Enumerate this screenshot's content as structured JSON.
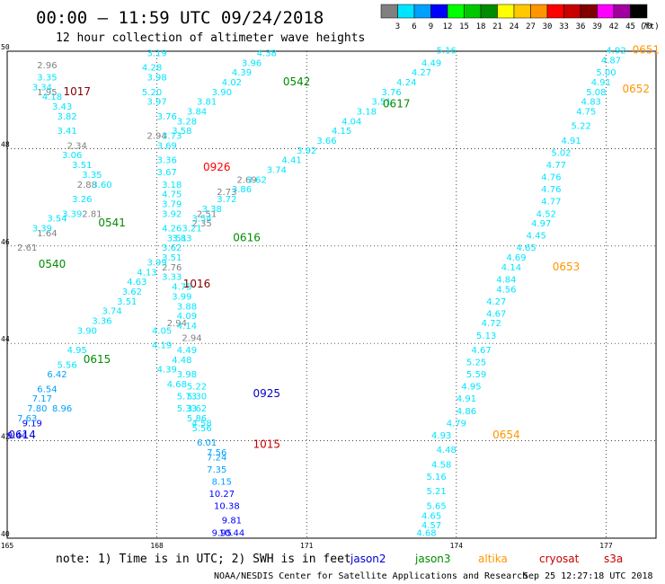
{
  "header": {
    "title": "00:00 – 11:59 UTC 09/24/2018",
    "subtitle": "12 hour collection of altimeter wave heights"
  },
  "colorbar": {
    "unit": "(ft)",
    "colors": [
      "#808080",
      "#00e5ff",
      "#00a0ff",
      "#0000ff",
      "#00ff00",
      "#00c800",
      "#008c00",
      "#ffff00",
      "#ffc800",
      "#ff9600",
      "#ff0000",
      "#c80000",
      "#800000",
      "#ff00ff",
      "#a000a0",
      "#000000"
    ],
    "labels": [
      "3",
      "6",
      "9",
      "12",
      "15",
      "18",
      "21",
      "24",
      "27",
      "30",
      "33",
      "36",
      "39",
      "42",
      "45",
      "70"
    ]
  },
  "footer": {
    "note": "note:  1) Time is in UTC;  2) SWH is in feet",
    "credit": "NOAA/NESDIS Center for Satellite Applications and Research",
    "timestamp": "Sep 25 12:27:18 UTC 2018",
    "satellites": [
      {
        "name": "jason2",
        "color": "#0000cc"
      },
      {
        "name": "jason3",
        "color": "#008c00"
      },
      {
        "name": "altika",
        "color": "#ff9600"
      },
      {
        "name": "cryosat",
        "color": "#c80000"
      },
      {
        "name": "s3a",
        "color": "#c80000"
      }
    ]
  },
  "chart_data": {
    "type": "scatter",
    "title": "00:00 – 11:59 UTC 09/24/2018",
    "subtitle": "12 hour collection of altimeter wave heights",
    "xlabel": "",
    "ylabel": "",
    "xlim": [
      165,
      178
    ],
    "ylim": [
      40,
      50
    ],
    "x_ticks": [
      "165",
      "168",
      "171",
      "174",
      "177"
    ],
    "y_ticks": [
      "40",
      "42",
      "44",
      "46",
      "48",
      "50"
    ],
    "grid": true,
    "value_unit": "ft",
    "tracks": [
      {
        "satellite": "cryosat",
        "time": "1017",
        "color": "#800000",
        "label_pos": [
          166.4,
          49.1
        ],
        "points": [
          [
            165.8,
            49.65,
            2.96
          ],
          [
            165.8,
            49.1,
            1.95
          ],
          [
            166.4,
            48.0,
            2.34
          ],
          [
            166.6,
            47.2,
            2.88
          ],
          [
            166.7,
            46.6,
            2.81
          ],
          [
            165.8,
            46.2,
            1.64
          ],
          [
            165.4,
            45.9,
            2.61
          ]
        ]
      },
      {
        "satellite": "s3a",
        "time": "0926",
        "color": "#ff0000",
        "label_pos": [
          169.2,
          47.55
        ],
        "points": [
          [
            168.0,
            48.2,
            2.94
          ],
          [
            169.8,
            47.3,
            2.69
          ],
          [
            169.4,
            47.05,
            2.73
          ],
          [
            169.0,
            46.6,
            2.51
          ],
          [
            168.9,
            46.4,
            2.35
          ]
        ]
      },
      {
        "satellite": "cryosat",
        "time": "1016",
        "color": "#800000",
        "label_pos": [
          168.8,
          45.15
        ],
        "points": [
          [
            168.4,
            44.35,
            2.94
          ],
          [
            168.7,
            44.05,
            2.94
          ]
        ]
      },
      {
        "satellite": "jason2",
        "time": "0614",
        "color": "#0000cc",
        "label_pos": [
          165.3,
          42.05
        ],
        "points": [
          [
            165.5,
            42.3,
            9.19
          ],
          [
            165.2,
            42.05,
            9.44
          ],
          [
            166.1,
            42.6,
            8.96
          ]
        ]
      },
      {
        "satellite": "jason3",
        "time": "0540",
        "color": "#008c00",
        "label_pos": [
          165.9,
          45.55
        ],
        "points": [
          [
            165.8,
            49.4,
            3.35
          ],
          [
            165.7,
            49.2,
            3.34
          ],
          [
            165.9,
            49.0,
            4.18
          ],
          [
            166.1,
            48.8,
            3.43
          ],
          [
            166.2,
            48.6,
            3.82
          ],
          [
            166.2,
            48.3,
            3.41
          ],
          [
            166.3,
            47.8,
            3.06
          ],
          [
            166.5,
            47.6,
            3.51
          ],
          [
            166.7,
            47.4,
            3.35
          ],
          [
            166.9,
            47.2,
            3.6
          ],
          [
            166.5,
            46.9,
            3.26
          ],
          [
            166.3,
            46.6,
            3.39
          ],
          [
            166.0,
            46.5,
            3.54
          ],
          [
            165.7,
            46.3,
            3.39
          ]
        ]
      },
      {
        "satellite": "jason3",
        "time": "0541",
        "color": "#008c00",
        "label_pos": [
          167.1,
          46.4
        ],
        "points": [
          [
            168.0,
            49.9,
            3.19
          ],
          [
            167.9,
            49.6,
            4.28
          ],
          [
            168.0,
            49.4,
            3.98
          ],
          [
            167.9,
            49.1,
            5.2
          ],
          [
            168.0,
            48.9,
            3.97
          ],
          [
            168.2,
            48.6,
            3.76
          ],
          [
            168.3,
            48.2,
            3.73
          ],
          [
            168.2,
            48.0,
            3.69
          ],
          [
            168.2,
            47.7,
            3.36
          ],
          [
            168.2,
            47.45,
            3.67
          ],
          [
            168.3,
            47.2,
            3.18
          ],
          [
            168.3,
            47.0,
            4.75
          ],
          [
            168.3,
            46.8,
            3.79
          ],
          [
            168.3,
            46.6,
            3.92
          ],
          [
            168.3,
            46.3,
            4.26
          ],
          [
            168.4,
            46.1,
            3.51
          ]
        ]
      },
      {
        "satellite": "jason3",
        "time": "0542",
        "color": "#008c00",
        "label_pos": [
          170.8,
          49.3
        ],
        "points": [
          [
            170.2,
            49.9,
            4.38
          ],
          [
            169.9,
            49.7,
            3.96
          ],
          [
            169.7,
            49.5,
            4.39
          ],
          [
            169.5,
            49.3,
            4.02
          ],
          [
            169.3,
            49.1,
            3.9
          ],
          [
            169.0,
            48.9,
            3.81
          ],
          [
            168.8,
            48.7,
            3.84
          ],
          [
            168.6,
            48.5,
            3.28
          ],
          [
            168.5,
            48.3,
            3.58
          ]
        ]
      },
      {
        "satellite": "jason3",
        "time": "0617",
        "color": "#008c00",
        "label_pos": [
          172.8,
          48.85
        ],
        "points": [
          [
            173.8,
            49.95,
            5.16
          ],
          [
            173.5,
            49.7,
            4.49
          ],
          [
            173.3,
            49.5,
            4.27
          ],
          [
            173.0,
            49.3,
            4.24
          ],
          [
            172.7,
            49.1,
            3.76
          ],
          [
            172.5,
            48.9,
            3.51
          ],
          [
            172.2,
            48.7,
            3.18
          ],
          [
            171.9,
            48.5,
            4.04
          ],
          [
            171.7,
            48.3,
            4.15
          ],
          [
            171.4,
            48.1,
            3.66
          ],
          [
            171.0,
            47.9,
            3.92
          ],
          [
            170.7,
            47.7,
            4.41
          ],
          [
            170.4,
            47.5,
            3.74
          ],
          [
            170.0,
            47.3,
            3.62
          ],
          [
            169.7,
            47.1,
            3.86
          ],
          [
            169.4,
            46.9,
            3.72
          ],
          [
            169.1,
            46.7,
            3.38
          ],
          [
            168.9,
            46.5,
            3.54
          ],
          [
            168.7,
            46.3,
            3.21
          ],
          [
            168.5,
            46.1,
            3.83
          ]
        ]
      },
      {
        "satellite": "jason3",
        "time": "0616",
        "color": "#008c00",
        "label_pos": [
          169.8,
          46.1
        ],
        "points": [
          [
            168.3,
            45.9,
            3.62
          ],
          [
            168.3,
            45.7,
            3.51
          ],
          [
            168.3,
            45.5,
            2.76
          ],
          [
            168.3,
            45.3,
            3.33
          ],
          [
            168.5,
            45.1,
            4.75
          ],
          [
            168.5,
            44.9,
            3.99
          ],
          [
            168.6,
            44.7,
            3.88
          ],
          [
            168.6,
            44.5,
            4.09
          ],
          [
            168.6,
            44.3,
            4.14
          ],
          [
            168.6,
            43.8,
            4.49
          ],
          [
            168.5,
            43.6,
            4.48
          ],
          [
            168.6,
            43.3,
            3.98
          ],
          [
            168.8,
            43.05,
            5.22
          ],
          [
            168.8,
            42.85,
            5.3
          ],
          [
            168.8,
            42.6,
            3.62
          ],
          [
            168.9,
            42.3,
            4.58
          ],
          [
            169.2,
            41.6,
            7.24
          ]
        ]
      },
      {
        "satellite": "jason3",
        "time": "0615",
        "color": "#008c00",
        "label_pos": [
          166.8,
          43.6
        ],
        "points": [
          [
            168.0,
            45.6,
            3.99
          ],
          [
            167.8,
            45.4,
            4.13
          ],
          [
            167.6,
            45.2,
            4.63
          ],
          [
            167.5,
            45.0,
            3.62
          ],
          [
            167.4,
            44.8,
            3.51
          ],
          [
            167.1,
            44.6,
            3.74
          ],
          [
            166.9,
            44.4,
            3.36
          ],
          [
            166.6,
            44.2,
            3.9
          ],
          [
            166.4,
            43.8,
            4.95
          ],
          [
            166.2,
            43.5,
            5.56
          ],
          [
            166.0,
            43.3,
            6.42
          ],
          [
            165.8,
            43.0,
            6.54
          ],
          [
            165.7,
            42.8,
            7.17
          ],
          [
            165.6,
            42.6,
            7.8
          ],
          [
            165.4,
            42.4,
            7.63
          ]
        ]
      },
      {
        "satellite": "jason2",
        "time": "0925",
        "color": "#0000cc",
        "label_pos": [
          170.2,
          42.9
        ],
        "points": [
          [
            168.1,
            44.2,
            4.05
          ],
          [
            168.1,
            43.9,
            4.19
          ],
          [
            168.2,
            43.4,
            4.39
          ],
          [
            168.4,
            43.1,
            4.68
          ],
          [
            168.6,
            42.85,
            5.73
          ],
          [
            168.6,
            42.6,
            5.33
          ],
          [
            168.8,
            42.4,
            5.86
          ],
          [
            168.9,
            42.2,
            5.56
          ],
          [
            169.0,
            41.9,
            6.01
          ],
          [
            169.2,
            41.7,
            7.56
          ],
          [
            169.2,
            41.35,
            7.35
          ],
          [
            169.3,
            41.1,
            8.15
          ],
          [
            169.3,
            40.85,
            10.27
          ],
          [
            169.4,
            40.6,
            10.38
          ],
          [
            169.5,
            40.3,
            9.81
          ]
        ]
      },
      {
        "satellite": "s3a",
        "time": "1015",
        "color": "#c80000",
        "label_pos": [
          170.2,
          41.85
        ],
        "points": [
          [
            169.3,
            40.05,
            9.95
          ],
          [
            169.5,
            40.05,
            10.44
          ]
        ]
      },
      {
        "satellite": "altika",
        "time": "0651",
        "color": "#ff9600",
        "label_pos": [
          177.8,
          49.95
        ],
        "points": [
          [
            177.2,
            49.95,
            4.92
          ],
          [
            177.1,
            49.75,
            4.87
          ],
          [
            177.0,
            49.5,
            5.0
          ],
          [
            176.9,
            49.3,
            4.91
          ],
          [
            176.8,
            49.1,
            5.08
          ],
          [
            176.7,
            48.9,
            4.83
          ],
          [
            176.6,
            48.7,
            4.75
          ],
          [
            176.5,
            48.4,
            5.22
          ],
          [
            176.3,
            48.1,
            4.91
          ],
          [
            176.1,
            47.85,
            5.02
          ],
          [
            176.0,
            47.6,
            4.77
          ],
          [
            175.9,
            47.35,
            4.76
          ],
          [
            175.9,
            47.1,
            4.76
          ],
          [
            175.9,
            46.85,
            4.77
          ],
          [
            175.8,
            46.6,
            4.52
          ],
          [
            175.7,
            46.4,
            4.97
          ],
          [
            175.6,
            46.15,
            4.45
          ]
        ]
      },
      {
        "satellite": "altika",
        "time": "0652",
        "color": "#ff9600",
        "label_pos": [
          177.6,
          49.15
        ],
        "points": []
      },
      {
        "satellite": "altika",
        "time": "0653",
        "color": "#ff9600",
        "label_pos": [
          176.2,
          45.5
        ],
        "points": [
          [
            175.4,
            45.9,
            4.65
          ],
          [
            175.2,
            45.7,
            4.69
          ],
          [
            175.1,
            45.5,
            4.14
          ],
          [
            175.0,
            45.25,
            4.84
          ],
          [
            175.0,
            45.05,
            4.56
          ],
          [
            174.8,
            44.8,
            4.27
          ],
          [
            174.8,
            44.55,
            4.67
          ],
          [
            174.7,
            44.35,
            4.72
          ],
          [
            174.6,
            44.1,
            5.13
          ],
          [
            174.5,
            43.8,
            4.67
          ],
          [
            174.4,
            43.55,
            5.25
          ],
          [
            174.4,
            43.3,
            5.59
          ],
          [
            174.3,
            43.05,
            4.95
          ],
          [
            174.2,
            42.8,
            4.91
          ],
          [
            174.2,
            42.55,
            4.86
          ],
          [
            174.0,
            42.3,
            4.79
          ]
        ]
      },
      {
        "satellite": "altika",
        "time": "0654",
        "color": "#ff9600",
        "label_pos": [
          175.0,
          42.05
        ],
        "points": [
          [
            173.7,
            42.05,
            4.93
          ],
          [
            173.8,
            41.75,
            4.48
          ],
          [
            173.7,
            41.45,
            4.58
          ],
          [
            173.6,
            41.2,
            5.16
          ],
          [
            173.6,
            40.9,
            5.21
          ],
          [
            173.6,
            40.6,
            5.65
          ],
          [
            173.5,
            40.4,
            4.65
          ],
          [
            173.5,
            40.2,
            4.57
          ],
          [
            173.4,
            40.05,
            4.68
          ]
        ]
      }
    ]
  }
}
